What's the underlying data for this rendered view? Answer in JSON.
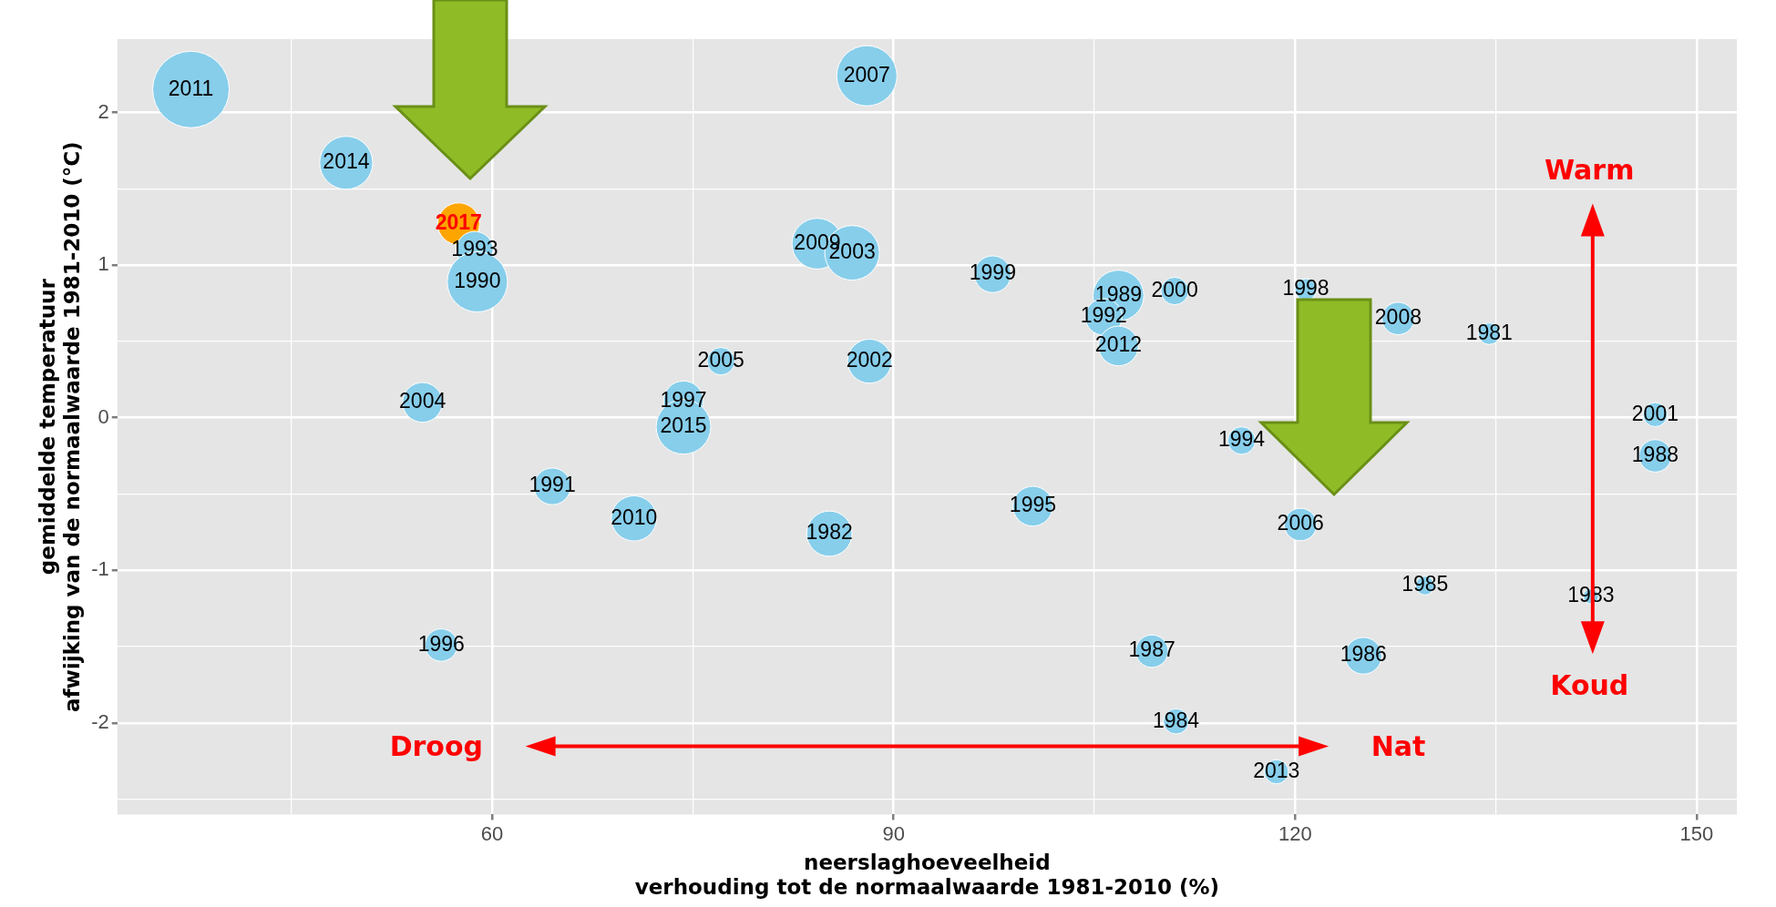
{
  "chart_data": {
    "type": "bubble",
    "xlabel": "neerslaghoeveelheid\nverhouding tot de normaalwaarde 1981-2010 (%)",
    "ylabel": "gemiddelde temperatuur\nafwijking van de normaalwaarde 1981-2010 (°C)",
    "xlim": [
      32,
      153
    ],
    "ylim": [
      -2.6,
      2.48
    ],
    "xticks": [
      {
        "value": 45,
        "label": null
      },
      60,
      {
        "value": 75,
        "label": null
      },
      90,
      {
        "value": 105,
        "label": null
      },
      120,
      {
        "value": 135,
        "label": null
      },
      150
    ],
    "yticks": [
      {
        "value": -2.5,
        "label": null
      },
      -2,
      {
        "value": -1.5,
        "label": null
      },
      -1,
      {
        "value": -0.5,
        "label": null
      },
      0,
      {
        "value": 0.5,
        "label": null
      },
      1,
      {
        "value": 1.5,
        "label": null
      },
      2
    ],
    "grid": true,
    "legend": false,
    "annotations": [
      "Droog",
      "Nat",
      "Warm",
      "Koud",
      {
        "text": "2011",
        "x": 37.5,
        "y": 2.15
      },
      {
        "text": "2014",
        "x": 49.1,
        "y": 1.67
      },
      {
        "text": "1993",
        "x": 58.7,
        "y": 1.1
      },
      {
        "text": "1990",
        "x": 58.9,
        "y": 0.89
      },
      {
        "text": "2004",
        "x": 54.8,
        "y": 0.1
      },
      {
        "text": "2007",
        "x": 88.0,
        "y": 2.24
      },
      {
        "text": "2009",
        "x": 84.3,
        "y": 1.14
      },
      {
        "text": "2003",
        "x": 86.9,
        "y": 1.08
      },
      {
        "text": "1999",
        "x": 97.4,
        "y": 0.94
      },
      {
        "text": "1989",
        "x": 106.8,
        "y": 0.8
      },
      {
        "text": "1992",
        "x": 105.7,
        "y": 0.66
      },
      {
        "text": "2000",
        "x": 111.0,
        "y": 0.83
      },
      {
        "text": "2012",
        "x": 106.8,
        "y": 0.47
      },
      {
        "text": "2005",
        "x": 77.1,
        "y": 0.37
      },
      {
        "text": "2002",
        "x": 88.2,
        "y": 0.37
      },
      {
        "text": "1997",
        "x": 74.3,
        "y": 0.11
      },
      {
        "text": "2015",
        "x": 74.3,
        "y": -0.06
      },
      {
        "text": "1994",
        "x": 116.0,
        "y": -0.15
      },
      {
        "text": "1998",
        "x": 120.8,
        "y": 0.84
      },
      {
        "text": "2008",
        "x": 127.7,
        "y": 0.65
      },
      {
        "text": "1981",
        "x": 134.5,
        "y": 0.55
      },
      {
        "text": "2001",
        "x": 146.9,
        "y": 0.02
      },
      {
        "text": "1988",
        "x": 146.9,
        "y": -0.25
      },
      {
        "text": "2006",
        "x": 120.4,
        "y": -0.7
      },
      {
        "text": "1985",
        "x": 129.7,
        "y": -1.1
      },
      {
        "text": "1983",
        "x": 142.1,
        "y": -1.17
      },
      {
        "text": "1986",
        "x": 125.1,
        "y": -1.56
      },
      {
        "text": "2013",
        "x": 118.6,
        "y": -2.32
      },
      {
        "text": "1991",
        "x": 64.5,
        "y": -0.45
      },
      {
        "text": "2010",
        "x": 70.6,
        "y": -0.66
      },
      {
        "text": "1996",
        "x": 56.2,
        "y": -1.49
      },
      {
        "text": "1982",
        "x": 85.2,
        "y": -0.76
      },
      {
        "text": "1995",
        "x": 100.4,
        "y": -0.58
      },
      {
        "text": "1987",
        "x": 109.3,
        "y": -1.53
      },
      {
        "text": "1984",
        "x": 111.1,
        "y": -1.99
      },
      {
        "text": "2017",
        "x": 57.5,
        "y": 1.27
      }
    ],
    "series": [
      {
        "color": "#87ceeb",
        "x": [
          37.5,
          49.1,
          58.7,
          58.9,
          54.8,
          88.0,
          84.3,
          86.9,
          97.4,
          106.8,
          105.7,
          111.0,
          106.8,
          77.1,
          88.2,
          74.3,
          74.3,
          116.0,
          120.8,
          127.7,
          134.5,
          146.9,
          146.9,
          120.4,
          129.7,
          142.1,
          125.1,
          118.6,
          64.5,
          70.6,
          56.2,
          85.2,
          100.4,
          109.3,
          111.1
        ],
        "values": [
          2.15,
          1.67,
          1.1,
          0.89,
          0.1,
          2.24,
          1.14,
          1.08,
          0.94,
          0.8,
          0.66,
          0.83,
          0.47,
          0.37,
          0.37,
          0.11,
          -0.06,
          -0.15,
          0.84,
          0.65,
          0.55,
          0.02,
          -0.25,
          -0.7,
          -1.1,
          -1.17,
          -1.56,
          -2.32,
          -0.45,
          -0.66,
          -1.49,
          -0.76,
          -0.58,
          -1.53,
          -1.99
        ],
        "sizes": [
          1,
          0.48,
          0.23,
          0.62,
          0.27,
          0.62,
          0.44,
          0.51,
          0.23,
          0.44,
          0.23,
          0.13,
          0.27,
          0.13,
          0.33,
          0.27,
          0.51,
          0.13,
          0.08,
          0.18,
          0.08,
          0.1,
          0.18,
          0.18,
          0.06,
          0.04,
          0.23,
          0.1,
          0.23,
          0.35,
          0.18,
          0.35,
          0.27,
          0.18,
          0.11
        ]
      },
      {
        "color": "#ffa500",
        "x": [
          57.5
        ],
        "values": [
          1.27
        ],
        "sizes": [
          0.3
        ]
      }
    ]
  }
}
